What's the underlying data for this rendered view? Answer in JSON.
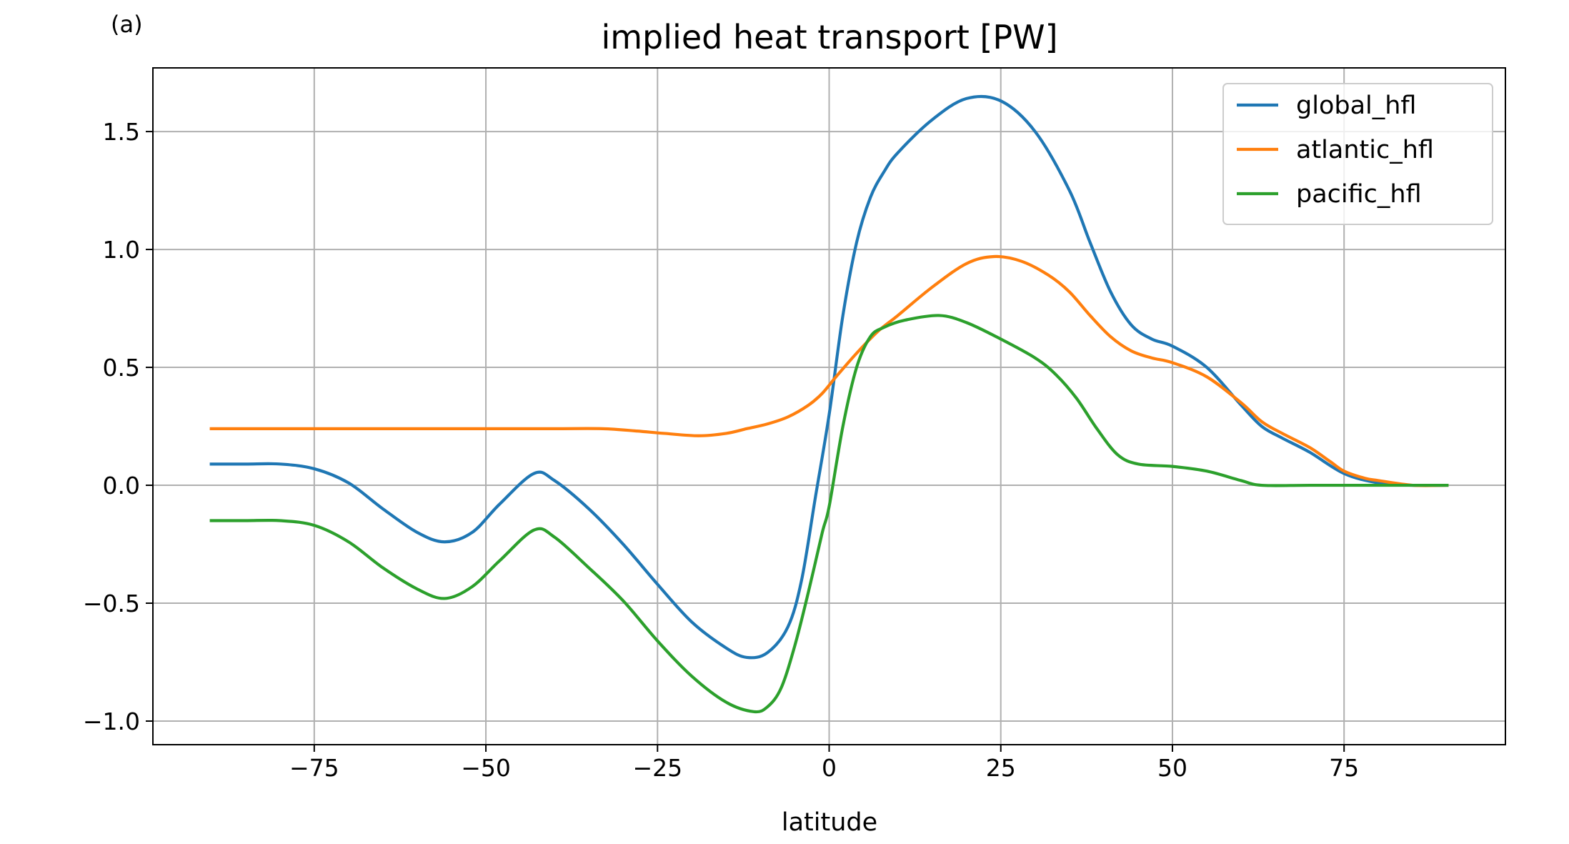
{
  "chart_data": {
    "type": "line",
    "panel_label": "(a)",
    "title": "implied heat transport [PW]",
    "xlabel": "latitude",
    "ylabel": "",
    "xlim": [
      -98.5,
      98.5
    ],
    "ylim": [
      -1.1,
      1.77
    ],
    "xticks": [
      -75,
      -50,
      -25,
      0,
      25,
      50,
      75
    ],
    "xtick_labels": [
      "−75",
      "−50",
      "−25",
      "0",
      "25",
      "50",
      "75"
    ],
    "yticks": [
      -1.0,
      -0.5,
      0.0,
      0.5,
      1.0,
      1.5
    ],
    "ytick_labels": [
      "−1.0",
      "−0.5",
      "0.0",
      "0.5",
      "1.0",
      "1.5"
    ],
    "grid": true,
    "legend_position": "upper right",
    "series": [
      {
        "name": "global_hfl",
        "color": "#1f77b4",
        "x": [
          -90,
          -85,
          -80,
          -75,
          -70,
          -65,
          -60,
          -56,
          -52,
          -48,
          -43,
          -40,
          -35,
          -30,
          -25,
          -20,
          -15,
          -12,
          -9,
          -6,
          -4,
          -2,
          0,
          2,
          4,
          6,
          8,
          10,
          15,
          20,
          25,
          30,
          35,
          38,
          41,
          44,
          47,
          50,
          55,
          60,
          63,
          66,
          70,
          75,
          80,
          85,
          90
        ],
        "y": [
          0.09,
          0.09,
          0.09,
          0.07,
          0.01,
          -0.1,
          -0.2,
          -0.24,
          -0.2,
          -0.08,
          0.05,
          0.02,
          -0.1,
          -0.25,
          -0.42,
          -0.58,
          -0.69,
          -0.73,
          -0.71,
          -0.6,
          -0.4,
          -0.05,
          0.3,
          0.72,
          1.03,
          1.22,
          1.33,
          1.41,
          1.55,
          1.64,
          1.63,
          1.5,
          1.25,
          1.03,
          0.82,
          0.68,
          0.62,
          0.59,
          0.5,
          0.34,
          0.25,
          0.2,
          0.14,
          0.05,
          0.01,
          0.0,
          0.0
        ]
      },
      {
        "name": "atlantic_hfl",
        "color": "#ff7f0e",
        "x": [
          -90,
          -80,
          -70,
          -60,
          -50,
          -40,
          -33,
          -28,
          -24,
          -19,
          -15,
          -12,
          -9,
          -6,
          -3,
          -1,
          1,
          4,
          7,
          10,
          15,
          20,
          24,
          28,
          32,
          35,
          38,
          41,
          44,
          47,
          50,
          55,
          60,
          63,
          66,
          70,
          73,
          75,
          78,
          80,
          85,
          90
        ],
        "y": [
          0.24,
          0.24,
          0.24,
          0.24,
          0.24,
          0.24,
          0.24,
          0.23,
          0.22,
          0.21,
          0.22,
          0.24,
          0.26,
          0.29,
          0.34,
          0.39,
          0.46,
          0.56,
          0.65,
          0.72,
          0.84,
          0.94,
          0.97,
          0.95,
          0.89,
          0.82,
          0.72,
          0.63,
          0.57,
          0.54,
          0.52,
          0.46,
          0.35,
          0.27,
          0.22,
          0.16,
          0.1,
          0.06,
          0.03,
          0.02,
          0.0,
          0.0
        ]
      },
      {
        "name": "pacific_hfl",
        "color": "#2ca02c",
        "x": [
          -90,
          -85,
          -80,
          -75,
          -70,
          -65,
          -60,
          -56,
          -52,
          -48,
          -43,
          -40,
          -35,
          -30,
          -25,
          -20,
          -15,
          -11,
          -9,
          -7,
          -5,
          -3,
          -1,
          0,
          2,
          4,
          6,
          8,
          11,
          16,
          20,
          25,
          30,
          33,
          36,
          39,
          42,
          45,
          50,
          55,
          60,
          63,
          70,
          80,
          90
        ],
        "y": [
          -0.15,
          -0.15,
          -0.15,
          -0.17,
          -0.24,
          -0.35,
          -0.44,
          -0.48,
          -0.43,
          -0.32,
          -0.19,
          -0.22,
          -0.35,
          -0.49,
          -0.66,
          -0.81,
          -0.92,
          -0.96,
          -0.94,
          -0.86,
          -0.68,
          -0.45,
          -0.2,
          -0.09,
          0.25,
          0.5,
          0.63,
          0.67,
          0.7,
          0.72,
          0.69,
          0.62,
          0.54,
          0.47,
          0.37,
          0.24,
          0.13,
          0.09,
          0.08,
          0.06,
          0.02,
          0.0,
          0.0,
          0.0,
          0.0
        ]
      }
    ]
  }
}
